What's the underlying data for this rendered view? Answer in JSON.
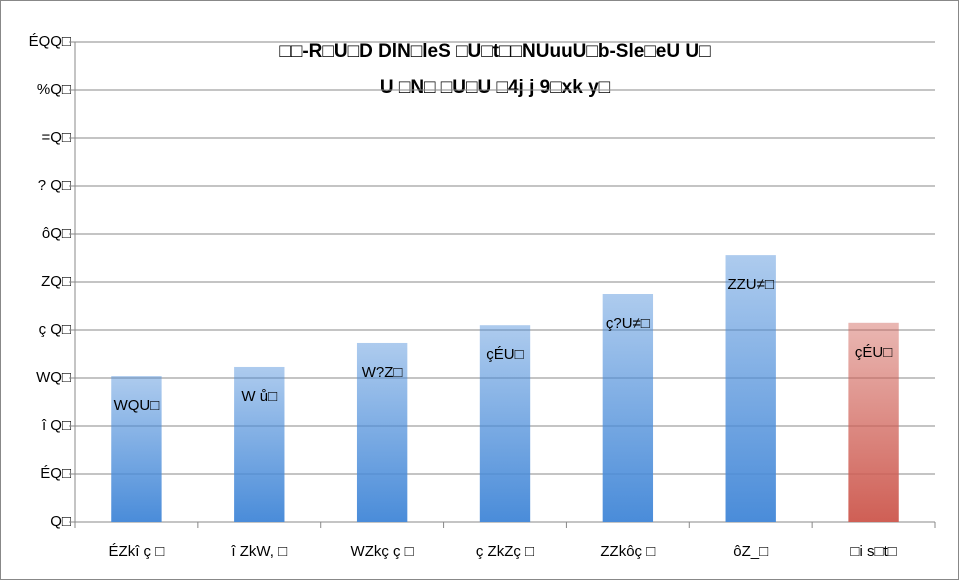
{
  "chart_data": {
    "type": "bar",
    "title": "□□-R□U□D DlN□leS □U□t□□NUuuU□b-Sle□eU U□",
    "subtitle": "U □N□ □U□U □4j j 9□xk y□",
    "categories": [
      "ÉZkî ç □",
      "î ZkW, □",
      "WZkç ç □",
      "ç ZkZç □",
      "ZZkôç □",
      "ôZ_□",
      "□i s□t□"
    ],
    "values": [
      30.4,
      32.3,
      37.3,
      41.0,
      47.5,
      55.6,
      41.5
    ],
    "value_labels": [
      "WQU□",
      "W ů□",
      "W?Z□",
      "çÉU□",
      "ç?U≠□",
      "ZZU≠□",
      "çÉU□"
    ],
    "colors": [
      "#4a8cd9",
      "#4a8cd9",
      "#4a8cd9",
      "#4a8cd9",
      "#4a8cd9",
      "#4a8cd9",
      "#cf5f55"
    ],
    "ylim": [
      0,
      100
    ],
    "yticks": [
      {
        "value": 0,
        "label": "Q□"
      },
      {
        "value": 10,
        "label": "ÉQ□"
      },
      {
        "value": 20,
        "label": "î Q□"
      },
      {
        "value": 30,
        "label": "WQ□"
      },
      {
        "value": 40,
        "label": "ç Q□"
      },
      {
        "value": 50,
        "label": "ZQ□"
      },
      {
        "value": 60,
        "label": "ôQ□"
      },
      {
        "value": 70,
        "label": "? Q□"
      },
      {
        "value": 80,
        "label": "=Q□"
      },
      {
        "value": 90,
        "label": "%Q□"
      },
      {
        "value": 100,
        "label": "ÉQQ□"
      }
    ],
    "grid": true
  }
}
